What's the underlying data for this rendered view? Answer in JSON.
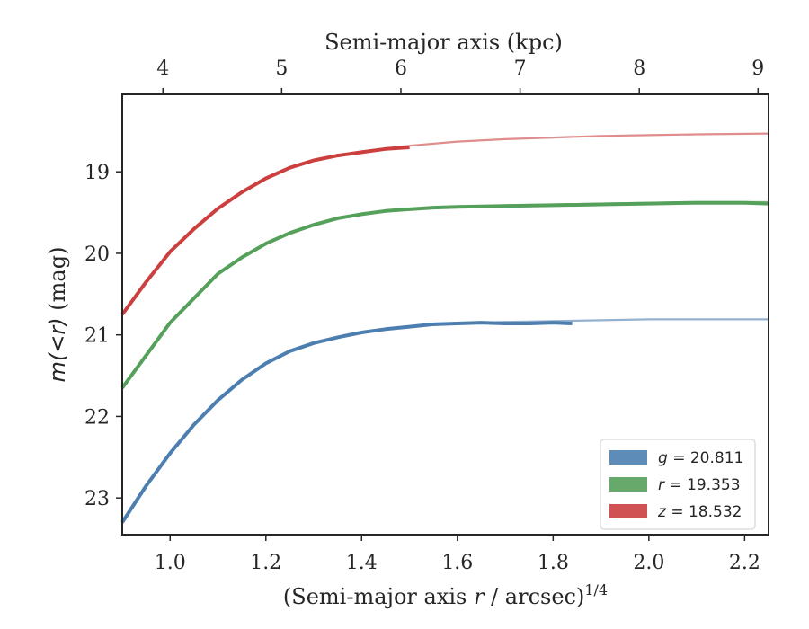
{
  "chart_data": {
    "type": "line",
    "xlabel_prefix": "(Semi-major axis ",
    "xlabel_var": "r",
    "xlabel_suffix": " / arcsec)",
    "xlabel_sup": "1/4",
    "ylabel_prefix": "m(<r)",
    "ylabel_suffix": " (mag)",
    "x2label": "Semi-major axis (kpc)",
    "xlim": [
      0.9,
      2.25
    ],
    "ylim": [
      23.45,
      18.05
    ],
    "y_inverted": true,
    "xticks": [
      1.0,
      1.2,
      1.4,
      1.6,
      1.8,
      2.0,
      2.2
    ],
    "xtick_labels": [
      "1.0",
      "1.2",
      "1.4",
      "1.6",
      "1.8",
      "2.0",
      "2.2"
    ],
    "yticks": [
      19,
      20,
      21,
      22,
      23
    ],
    "ytick_labels": [
      "19",
      "20",
      "21",
      "22",
      "23"
    ],
    "x2ticks_kpc": [
      4,
      5,
      6,
      7,
      8,
      9
    ],
    "x2tick_labels": [
      "4",
      "5",
      "6",
      "7",
      "8",
      "9"
    ],
    "x2_positions": [
      0.985,
      1.233,
      1.482,
      1.731,
      1.98,
      2.228
    ],
    "grid": false,
    "legend_position": "lower-right",
    "series": [
      {
        "name": "g",
        "legend_label": "= 20.811",
        "color": "#4c7fb0",
        "measured": {
          "x": [
            0.9,
            0.95,
            1.0,
            1.05,
            1.1,
            1.15,
            1.2,
            1.25,
            1.3,
            1.35,
            1.4,
            1.45,
            1.5,
            1.55,
            1.6,
            1.65,
            1.7,
            1.75,
            1.8,
            1.84
          ],
          "y": [
            23.3,
            22.85,
            22.45,
            22.1,
            21.8,
            21.55,
            21.35,
            21.2,
            21.1,
            21.03,
            20.97,
            20.93,
            20.9,
            20.87,
            20.86,
            20.85,
            20.86,
            20.86,
            20.85,
            20.86
          ]
        },
        "model": {
          "x": [
            0.9,
            0.95,
            1.0,
            1.05,
            1.1,
            1.15,
            1.2,
            1.25,
            1.3,
            1.35,
            1.4,
            1.5,
            1.6,
            1.7,
            1.8,
            1.9,
            2.0,
            2.1,
            2.25
          ],
          "y": [
            23.3,
            22.85,
            22.45,
            22.1,
            21.8,
            21.55,
            21.35,
            21.2,
            21.1,
            21.03,
            20.97,
            20.9,
            20.86,
            20.84,
            20.83,
            20.82,
            20.81,
            20.81,
            20.81
          ]
        }
      },
      {
        "name": "r",
        "legend_label": "= 19.353",
        "color": "#55a05a",
        "measured": {
          "x": [
            0.9,
            0.95,
            1.0,
            1.05,
            1.1,
            1.15,
            1.2,
            1.25,
            1.3,
            1.35,
            1.4,
            1.45,
            1.5,
            1.55,
            1.6,
            1.7,
            1.8,
            1.9,
            2.0,
            2.1,
            2.2,
            2.25
          ],
          "y": [
            21.65,
            21.25,
            20.85,
            20.55,
            20.25,
            20.05,
            19.88,
            19.75,
            19.65,
            19.57,
            19.52,
            19.48,
            19.46,
            19.44,
            19.43,
            19.42,
            19.41,
            19.4,
            19.39,
            19.38,
            19.38,
            19.39
          ]
        },
        "model": {
          "x": [
            0.9,
            0.95,
            1.0,
            1.05,
            1.1,
            1.15,
            1.2,
            1.25,
            1.3,
            1.35,
            1.4,
            1.5,
            1.6,
            1.7,
            1.8,
            1.9,
            2.0,
            2.1,
            2.25
          ],
          "y": [
            21.65,
            21.25,
            20.85,
            20.55,
            20.25,
            20.05,
            19.88,
            19.75,
            19.65,
            19.57,
            19.52,
            19.46,
            19.43,
            19.41,
            19.4,
            19.39,
            19.38,
            19.37,
            19.37
          ]
        }
      },
      {
        "name": "z",
        "legend_label": "= 18.532",
        "color": "#cc3f3f",
        "measured": {
          "x": [
            0.9,
            0.95,
            1.0,
            1.05,
            1.1,
            1.15,
            1.2,
            1.25,
            1.3,
            1.35,
            1.4,
            1.45,
            1.5
          ],
          "y": [
            20.75,
            20.35,
            19.98,
            19.7,
            19.45,
            19.25,
            19.08,
            18.95,
            18.86,
            18.8,
            18.76,
            18.72,
            18.7
          ]
        },
        "model": {
          "x": [
            0.9,
            0.95,
            1.0,
            1.05,
            1.1,
            1.15,
            1.2,
            1.25,
            1.3,
            1.35,
            1.4,
            1.5,
            1.6,
            1.7,
            1.8,
            1.9,
            2.0,
            2.1,
            2.25
          ],
          "y": [
            20.75,
            20.35,
            19.98,
            19.7,
            19.45,
            19.25,
            19.08,
            18.95,
            18.86,
            18.8,
            18.75,
            18.68,
            18.63,
            18.6,
            18.58,
            18.56,
            18.55,
            18.54,
            18.53
          ]
        }
      }
    ]
  }
}
